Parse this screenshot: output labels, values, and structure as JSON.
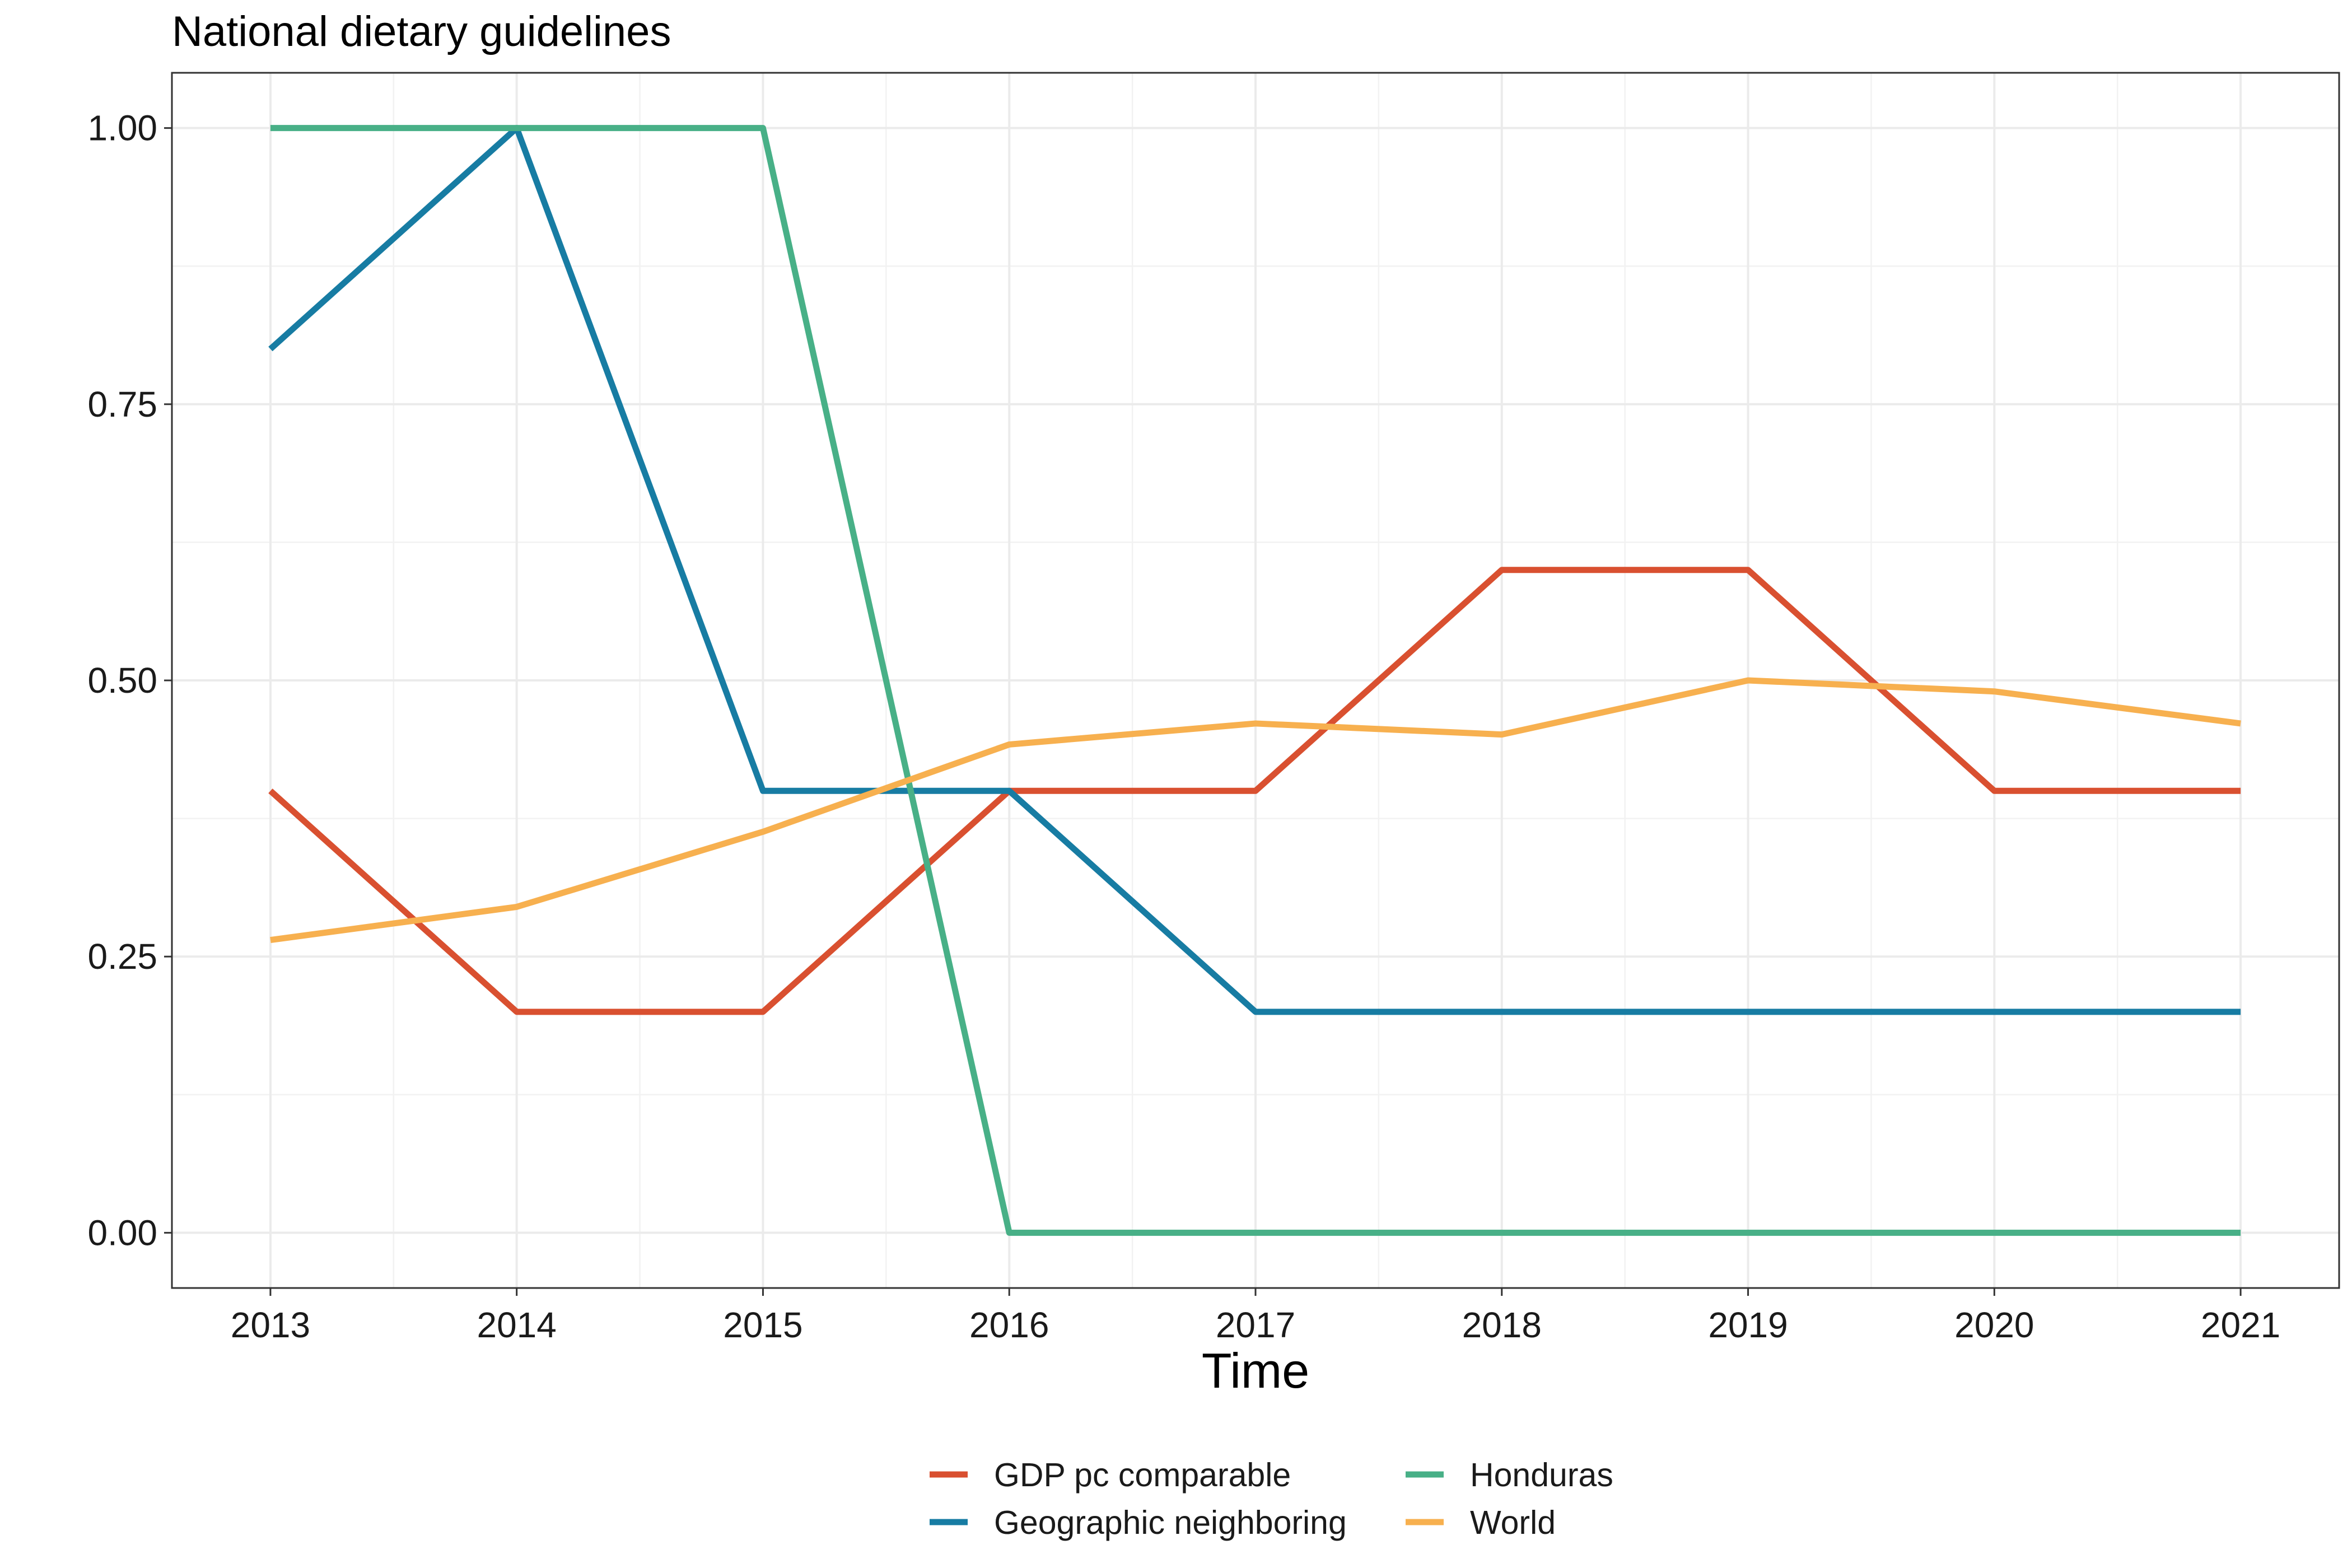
{
  "chart_data": {
    "type": "line",
    "title": "National dietary guidelines",
    "xlabel": "Time",
    "ylabel": "",
    "x": [
      2013,
      2014,
      2015,
      2016,
      2017,
      2018,
      2019,
      2020,
      2021
    ],
    "xlim": [
      2012.6,
      2021.4
    ],
    "ylim": [
      -0.05,
      1.05
    ],
    "x_ticks": [
      "2013",
      "2014",
      "2015",
      "2016",
      "2017",
      "2018",
      "2019",
      "2020",
      "2021"
    ],
    "y_ticks": [
      "0.00",
      "0.25",
      "0.50",
      "0.75",
      "1.00"
    ],
    "y_tick_values": [
      0,
      0.25,
      0.5,
      0.75,
      1.0
    ],
    "grid": true,
    "legend_position": "bottom",
    "series": [
      {
        "name": "GDP pc comparable",
        "color": "#D95030",
        "values": [
          0.4,
          0.2,
          0.2,
          0.4,
          0.4,
          0.6,
          0.6,
          0.4,
          0.4
        ]
      },
      {
        "name": "Geographic neighboring",
        "color": "#177CA3",
        "values": [
          0.8,
          1.0,
          0.4,
          0.4,
          0.2,
          0.2,
          0.2,
          0.2,
          0.2
        ]
      },
      {
        "name": "Honduras",
        "color": "#48B087",
        "values": [
          1.0,
          1.0,
          1.0,
          0.0,
          0.0,
          0.0,
          0.0,
          0.0,
          0.0
        ]
      },
      {
        "name": "World",
        "color": "#F7B04F",
        "values": [
          0.265,
          0.295,
          0.363,
          0.442,
          0.461,
          0.451,
          0.5,
          0.49,
          0.461
        ]
      }
    ]
  }
}
